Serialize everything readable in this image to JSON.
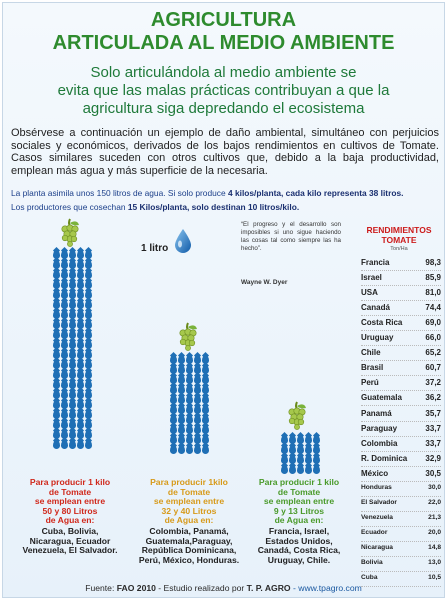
{
  "header": {
    "title_line1": "AGRICULTURA",
    "title_line2": "ARTICULADA AL MEDIO AMBIENTE",
    "subtitle_line1": "Solo articulándola al medio ambiente se",
    "subtitle_line2": "evita que las malas prácticas contribuyan a que la",
    "subtitle_line3": "agricultura siga depredando el ecosistema"
  },
  "intro": "Obsérvese a continuación un ejemplo de daño ambiental, simultáneo con perjuicios sociales y económicos, derivados de los bajos rendimientos en cultivos de Tomate. Casos similares suceden con otros cultivos que, debido a la baja productividad, emplean más agua y más superficie de la necesaria.",
  "notes": {
    "line1_plain": "La planta asimila unos 150 litros de agua. Si solo produce ",
    "line1_bold": "4 kilos/planta, cada kilo representa 38 litros.",
    "line2_plain": "Los productores que cosechan ",
    "line2_bold": "15  Kilos/planta, solo destinan 10 litros/kilo."
  },
  "legend": {
    "one_liter": "1 litro"
  },
  "quote": {
    "text": "“El progreso y el desarrollo son imposibles si uno sigue haciendo las cosas tal como siempre las ha hecho”.",
    "author": "Wayne W. Dyer"
  },
  "columns": [
    {
      "color": "#d0281b",
      "lines": [
        "Para producir 1 kilo",
        "de Tomate",
        "se emplean entre",
        "50 y 80 Litros",
        "de Agua en:"
      ],
      "countries": [
        "Cuba, Bolivia,",
        "Nicaragua, Ecuador",
        "Venezuela, El Salvador."
      ]
    },
    {
      "color": "#d79a1a",
      "lines": [
        "Para producir 1kilo",
        "de Tomate",
        "se emplean entre",
        "32 y 40 Litros",
        "de Agua en:"
      ],
      "countries": [
        "Colombia, Panamá,",
        "Guatemala,Paraguay,",
        "República Dominicana,",
        "Perú, México, Honduras."
      ]
    },
    {
      "color": "#4a9a2a",
      "lines": [
        "Para producir 1 kilo",
        "de Tomate",
        "se emplean entre",
        "9 y 13 Litros",
        "de Agua en:"
      ],
      "countries": [
        "Francia, Israel,",
        "Estados Unidos,",
        "Canadá, Costa Rica,",
        "Uruguay, Chile."
      ]
    }
  ],
  "yields": {
    "title_line1": "RENDIMIENTOS",
    "title_line2": "TOMATE",
    "unit": "Ton/Ha",
    "rows": [
      {
        "country": "Francia",
        "value": "98,3"
      },
      {
        "country": "Israel",
        "value": "85,9"
      },
      {
        "country": "USA",
        "value": "81,0"
      },
      {
        "country": "Canadá",
        "value": "74,4"
      },
      {
        "country": "Costa Rica",
        "value": "69,0"
      },
      {
        "country": "Uruguay",
        "value": "66,0"
      },
      {
        "country": "Chile",
        "value": "65,2"
      },
      {
        "country": "Brasil",
        "value": "60,7"
      },
      {
        "country": "Perú",
        "value": "37,2"
      },
      {
        "country": "Guatemala",
        "value": "36,2"
      },
      {
        "country": "Panamá",
        "value": "35,7"
      },
      {
        "country": "Paraguay",
        "value": "33,7"
      },
      {
        "country": "Colombia",
        "value": "33,7"
      },
      {
        "country": "R. Dominica",
        "value": "32,9"
      },
      {
        "country": "México",
        "value": "30,5"
      },
      {
        "country": "Honduras",
        "value": "30,0"
      },
      {
        "country": "El Salvador",
        "value": "22,0"
      },
      {
        "country": "Venezuela",
        "value": "21,3"
      },
      {
        "country": "Ecuador",
        "value": "20,0"
      },
      {
        "country": "Nicaragua",
        "value": "14,8"
      },
      {
        "country": "Bolivia",
        "value": "13,0"
      },
      {
        "country": "Cuba",
        "value": "10,5"
      }
    ]
  },
  "footer": {
    "prefix": "Fuente: ",
    "source": "FAO 2010",
    "middle": " - Estudio realizado por ",
    "author": "T. P. AGRO",
    "website": " - www.tpagro.com"
  },
  "colors": {
    "title_green": "#2e8b2e",
    "water_blue": "#1f6fb5",
    "table_red": "#cc1b1b"
  },
  "icons": [
    "grape-icon",
    "water-drop-icon"
  ]
}
